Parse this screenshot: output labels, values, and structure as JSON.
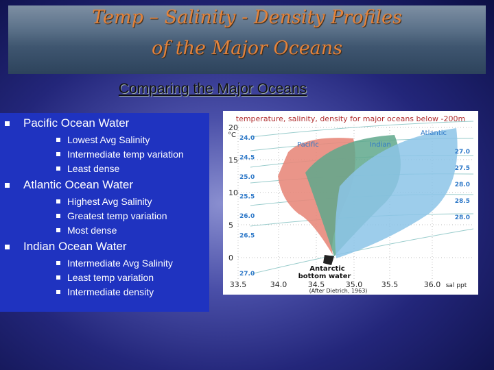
{
  "header": {
    "title_line1": "Temp – Salinity - Density Profiles",
    "title_line2": "of the Major Oceans"
  },
  "subtitle": "Comparing the Major Oceans",
  "bullets": [
    {
      "text": "Pacific Ocean Water",
      "items": [
        "Lowest Avg Salinity",
        "Intermediate temp variation",
        "Least dense"
      ]
    },
    {
      "text": "Atlantic Ocean Water",
      "items": [
        "Highest Avg Salinity",
        "Greatest temp variation",
        "Most dense"
      ]
    },
    {
      "text": "Indian Ocean Water",
      "items": [
        "Intermediate Avg Salinity",
        "Least temp variation",
        "Intermediate density"
      ]
    }
  ],
  "figure": {
    "title": "temperature, salinity, density for major oceans below -200m",
    "y_unit": "°C",
    "y_labels": [
      "20",
      "15",
      "10",
      "5",
      "0"
    ],
    "x_labels": [
      "33.5",
      "34.0",
      "34.5",
      "35.0",
      "35.5",
      "36.0"
    ],
    "x_unit": "sal ppt",
    "density_left": [
      "24.0",
      "24.5",
      "25.0",
      "25.5",
      "26.0",
      "26.5",
      "27.0"
    ],
    "density_right": [
      "27.0",
      "27.5",
      "28.0",
      "28.5",
      "28.0"
    ],
    "regions": [
      "Pacific",
      "Indian",
      "Atlantic"
    ],
    "annotation_line1": "Antarctic",
    "annotation_line2": "bottom water",
    "source": "(After Dietrich, 1963)"
  }
}
